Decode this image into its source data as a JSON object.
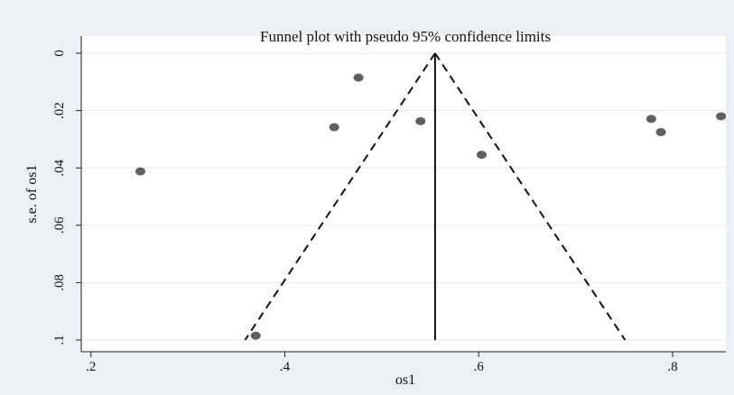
{
  "chart_data": {
    "type": "scatter",
    "title": "Funnel plot with pseudo 95% confidence limits",
    "xlabel": "os1",
    "ylabel": "s.e. of os1",
    "xlim": [
      0.19,
      0.855
    ],
    "ylim": [
      0,
      0.1
    ],
    "y_reversed": true,
    "xticks": [
      0.2,
      0.4,
      0.6,
      0.8
    ],
    "xtick_labels": [
      ".2",
      ".4",
      ".6",
      ".8"
    ],
    "yticks": [
      0,
      0.02,
      0.04,
      0.06,
      0.08,
      0.1
    ],
    "ytick_labels": [
      "0",
      ".02",
      ".04",
      ".06",
      ".08",
      ".1"
    ],
    "grid": true,
    "pooled_estimate": 0.555,
    "pseudo_ci_limits": {
      "apex": [
        0.555,
        0
      ],
      "lower_at_se_0_1": 0.359,
      "upper_at_se_0_1": 0.751
    },
    "points": [
      {
        "x": 0.251,
        "y": 0.0412
      },
      {
        "x": 0.37,
        "y": 0.0985
      },
      {
        "x": 0.451,
        "y": 0.0258
      },
      {
        "x": 0.476,
        "y": 0.0085
      },
      {
        "x": 0.54,
        "y": 0.0237
      },
      {
        "x": 0.603,
        "y": 0.0354
      },
      {
        "x": 0.778,
        "y": 0.0229
      },
      {
        "x": 0.788,
        "y": 0.0275
      },
      {
        "x": 0.85,
        "y": 0.022
      }
    ]
  },
  "colors": {
    "background": "#eaf0f5",
    "plot_area": "#ffffff",
    "points": "#606060",
    "lines": "#111111"
  }
}
